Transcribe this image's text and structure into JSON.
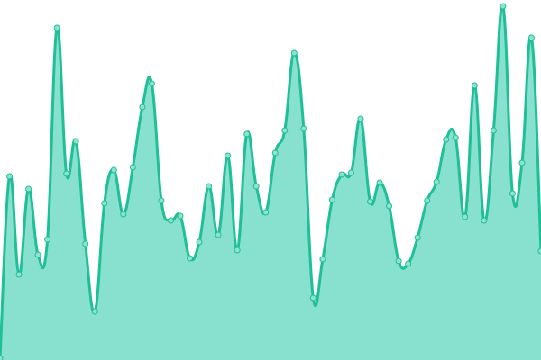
{
  "chart_data": {
    "type": "area",
    "smoothed": true,
    "show_markers": true,
    "grid": false,
    "axes_visible": false,
    "legend": "none",
    "x": [
      0,
      1,
      2,
      3,
      4,
      5,
      6,
      7,
      8,
      9,
      10,
      11,
      12,
      13,
      14,
      15,
      16,
      17,
      18,
      19,
      20,
      21,
      22,
      23,
      24,
      25,
      26,
      27,
      28,
      29,
      30,
      31,
      32,
      33,
      34,
      35,
      36,
      37,
      38,
      39,
      40,
      41,
      42,
      43,
      44,
      45,
      46,
      47,
      48,
      49,
      50,
      51,
      52,
      53,
      54,
      55,
      56,
      57
    ],
    "values": [
      2,
      204,
      95,
      190,
      117,
      134,
      369,
      207,
      243,
      129,
      54,
      174,
      211,
      162,
      214,
      281,
      307,
      177,
      155,
      160,
      113,
      131,
      193,
      139,
      227,
      122,
      251,
      193,
      164,
      230,
      255,
      341,
      257,
      69,
      112,
      178,
      206,
      208,
      268,
      176,
      197,
      171,
      110,
      107,
      136,
      177,
      198,
      245,
      247,
      159,
      305,
      155,
      255,
      393,
      185,
      219,
      358,
      121
    ],
    "ylim": [
      0,
      400
    ],
    "colors": {
      "line": "#1fbf98",
      "fill": "#88e0cf",
      "marker_fill": "#8ee3cf",
      "marker_stroke": "#1fbf98"
    }
  }
}
